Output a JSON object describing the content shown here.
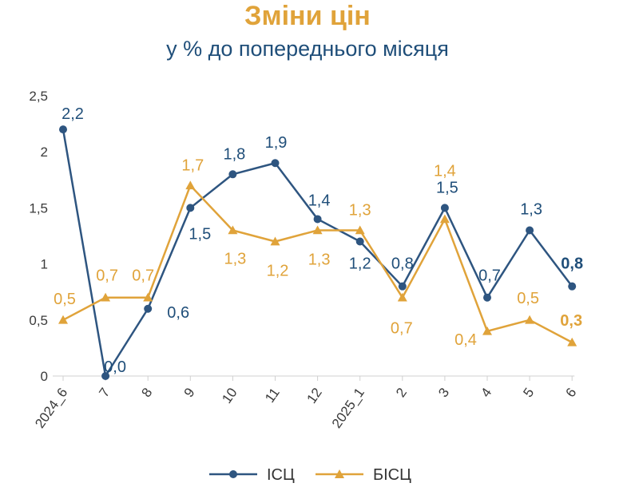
{
  "colors": {
    "isc": "#2E5580",
    "bisc": "#E0A33A",
    "isc_label": "#1F4E79",
    "bisc_label": "#E0A33A"
  },
  "chart_data": {
    "type": "line",
    "title": "Зміни цін",
    "subtitle": "у % до попереднього місяця",
    "categories": [
      "2024_6",
      "7",
      "8",
      "9",
      "10",
      "11",
      "12",
      "2025_1",
      "2",
      "3",
      "4",
      "5",
      "6"
    ],
    "ylim": [
      0,
      2.5
    ],
    "yticks": [
      "0",
      "0,5",
      "1",
      "1,5",
      "2",
      "2,5"
    ],
    "grid": false,
    "legend_position": "bottom",
    "series": [
      {
        "name": "ІСЦ",
        "marker": "circle",
        "values": [
          2.2,
          0.0,
          0.6,
          1.5,
          1.8,
          1.9,
          1.4,
          1.2,
          0.8,
          1.5,
          0.7,
          1.3,
          0.8
        ],
        "labels": [
          "2,2",
          "0,0",
          "0,6",
          "1,5",
          "1,8",
          "1,9",
          "1,4",
          "1,2",
          "0,8",
          "1,5",
          "0,7",
          "1,3",
          "0,8"
        ]
      },
      {
        "name": "БІСЦ",
        "marker": "triangle",
        "values": [
          0.5,
          0.7,
          0.7,
          1.7,
          1.3,
          1.2,
          1.3,
          1.3,
          0.7,
          1.4,
          0.4,
          0.5,
          0.3
        ],
        "labels": [
          "0,5",
          "0,7",
          "0,7",
          "1,7",
          "1,3",
          "1,2",
          "1,3",
          "1,3",
          "0,7",
          "1,4",
          "0,4",
          "0,5",
          "0,3"
        ]
      }
    ]
  }
}
